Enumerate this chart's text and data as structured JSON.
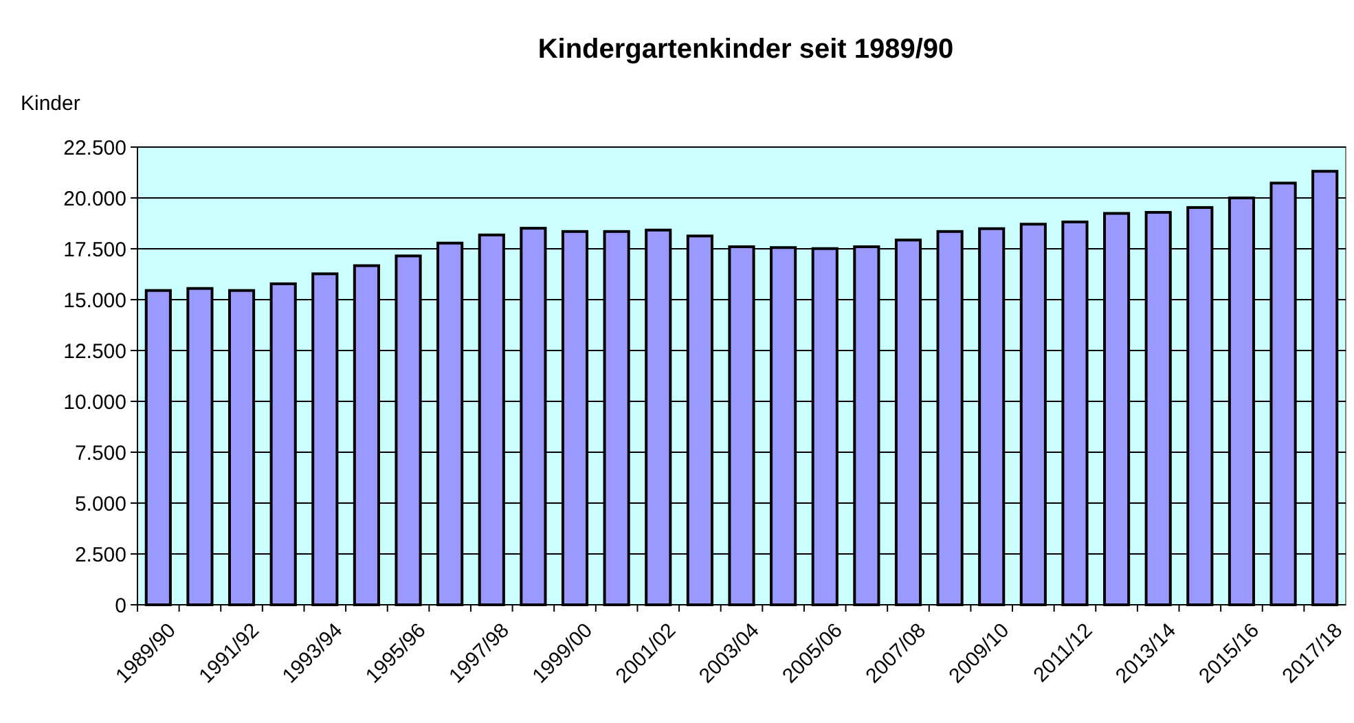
{
  "chart_data": {
    "type": "bar",
    "title": "Kindergartenkinder seit 1989/90",
    "ylabel": "Kinder",
    "categories": [
      "1989/90",
      null,
      "1991/92",
      null,
      "1993/94",
      null,
      "1995/96",
      null,
      "1997/98",
      null,
      "1999/00",
      null,
      "2001/02",
      null,
      "2003/04",
      null,
      "2005/06",
      null,
      "2007/08",
      null,
      "2009/10",
      null,
      "2011/12",
      null,
      "2013/14",
      null,
      "2015/16",
      null,
      "2017/18"
    ],
    "values": [
      15450,
      15550,
      15450,
      15780,
      16270,
      16670,
      17150,
      17780,
      18180,
      18510,
      18350,
      18350,
      18420,
      18130,
      17600,
      17560,
      17510,
      17600,
      17930,
      18350,
      18490,
      18710,
      18820,
      19240,
      19290,
      19530,
      20000,
      20730,
      21310
    ],
    "color": "#9999ff",
    "ylim": [
      0,
      22500
    ],
    "yticks": [
      {
        "value": 0,
        "label": "0"
      },
      {
        "value": 2500,
        "label": "2.500"
      },
      {
        "value": 5000,
        "label": "5.000"
      },
      {
        "value": 7500,
        "label": "7.500"
      },
      {
        "value": 10000,
        "label": "10.000"
      },
      {
        "value": 12500,
        "label": "12.500"
      },
      {
        "value": 15000,
        "label": "15.000"
      },
      {
        "value": 17500,
        "label": "17.500"
      },
      {
        "value": 20000,
        "label": "20.000"
      },
      {
        "value": 22500,
        "label": "22.500"
      }
    ],
    "grid": "y"
  }
}
